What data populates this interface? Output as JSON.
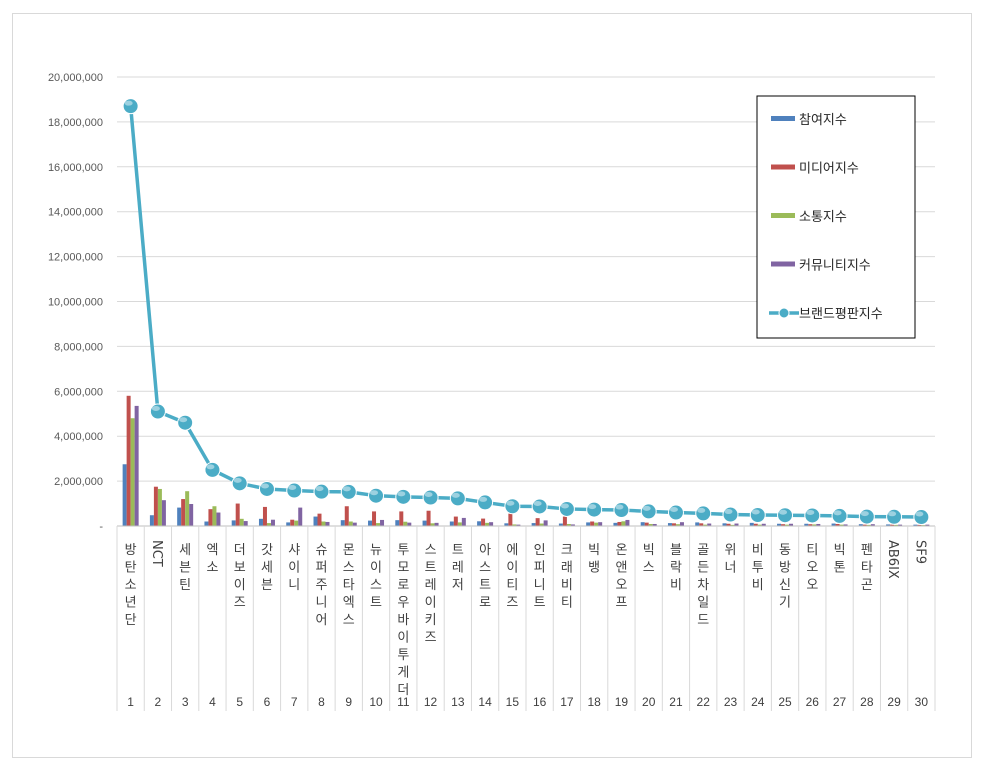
{
  "chart_data": {
    "type": "bar",
    "categories": [
      "1",
      "2",
      "3",
      "4",
      "5",
      "6",
      "7",
      "8",
      "9",
      "10",
      "11",
      "12",
      "13",
      "14",
      "15",
      "16",
      "17",
      "18",
      "19",
      "20",
      "21",
      "22",
      "23",
      "24",
      "25",
      "26",
      "27",
      "28",
      "29",
      "30"
    ],
    "category_names": [
      "방탄소년단",
      "NCT",
      "세븐틴",
      "엑소",
      "더보이즈",
      "갓세븐",
      "샤이니",
      "슈퍼주니어",
      "몬스타엑스",
      "뉴이스트",
      "투모로우바이투게더",
      "스트레이키즈",
      "트레저",
      "아스트로",
      "에이티즈",
      "인피니트",
      "크래비티",
      "빅뱅",
      "온앤오프",
      "빅스",
      "블락비",
      "골든차일드",
      "위너",
      "비투비",
      "동방신기",
      "티오오",
      "빅톤",
      "펜타곤",
      "AB6IX",
      "SF9"
    ],
    "ylim": [
      0,
      20000000
    ],
    "yticks": [
      "-",
      "2,000,000",
      "4,000,000",
      "6,000,000",
      "8,000,000",
      "10,000,000",
      "12,000,000",
      "14,000,000",
      "16,000,000",
      "18,000,000",
      "20,000,000"
    ],
    "grid": true,
    "legend_position": "top-right",
    "series": [
      {
        "name": "참여지수",
        "kind": "bar",
        "color": "#4f81bd",
        "values": [
          2750000,
          480000,
          820000,
          200000,
          250000,
          320000,
          160000,
          420000,
          260000,
          240000,
          260000,
          240000,
          200000,
          210000,
          120000,
          130000,
          110000,
          160000,
          140000,
          170000,
          130000,
          160000,
          120000,
          140000,
          100000,
          100000,
          110000,
          80000,
          70000,
          60000
        ]
      },
      {
        "name": "미디어지수",
        "kind": "bar",
        "color": "#c0504d",
        "values": [
          5800000,
          1750000,
          1200000,
          750000,
          1000000,
          850000,
          280000,
          550000,
          880000,
          650000,
          650000,
          680000,
          420000,
          330000,
          550000,
          350000,
          420000,
          200000,
          180000,
          150000,
          120000,
          120000,
          100000,
          100000,
          80000,
          80000,
          90000,
          60000,
          60000,
          50000
        ]
      },
      {
        "name": "소통지수",
        "kind": "bar",
        "color": "#9bbb59",
        "values": [
          4800000,
          1650000,
          1550000,
          880000,
          320000,
          130000,
          240000,
          200000,
          200000,
          130000,
          190000,
          120000,
          160000,
          140000,
          70000,
          110000,
          90000,
          150000,
          210000,
          90000,
          80000,
          60000,
          50000,
          60000,
          60000,
          70000,
          60000,
          50000,
          50000,
          40000
        ]
      },
      {
        "name": "커뮤니티지수",
        "kind": "bar",
        "color": "#8064a2",
        "values": [
          5350000,
          1150000,
          980000,
          600000,
          220000,
          280000,
          820000,
          180000,
          150000,
          270000,
          150000,
          140000,
          360000,
          170000,
          60000,
          250000,
          70000,
          170000,
          270000,
          90000,
          170000,
          110000,
          110000,
          100000,
          100000,
          90000,
          70000,
          80000,
          60000,
          60000
        ]
      },
      {
        "name": "브랜드평판지수",
        "kind": "line",
        "color": "#4bacc6",
        "values": [
          18700000,
          5100000,
          4600000,
          2500000,
          1900000,
          1650000,
          1580000,
          1530000,
          1520000,
          1350000,
          1300000,
          1270000,
          1230000,
          1050000,
          880000,
          870000,
          760000,
          730000,
          710000,
          650000,
          600000,
          560000,
          510000,
          490000,
          480000,
          470000,
          450000,
          420000,
          410000,
          400000
        ]
      }
    ]
  }
}
